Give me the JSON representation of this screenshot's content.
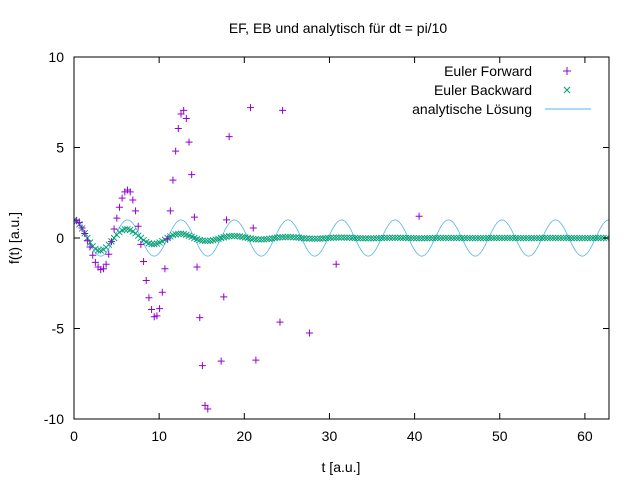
{
  "chart_data": {
    "type": "scatter",
    "title": "EF, EB und analytisch für dt = pi/10",
    "xlabel": "t [a.u.]",
    "ylabel": "f(t) [a.u.]",
    "xlim": [
      0,
      62.83
    ],
    "ylim": [
      -10,
      10
    ],
    "xticks": [
      0,
      10,
      20,
      30,
      40,
      50,
      60
    ],
    "yticks": [
      -10,
      -5,
      0,
      5,
      10
    ],
    "grid": false,
    "legend_position": "top-right",
    "series": [
      {
        "name": "Euler Forward",
        "marker": "plus",
        "color": "#9400d3",
        "x": [
          0.0,
          0.31,
          0.63,
          0.94,
          1.26,
          1.57,
          1.88,
          2.2,
          2.51,
          2.83,
          3.14,
          3.46,
          3.77,
          4.08,
          4.4,
          4.71,
          5.03,
          5.34,
          5.65,
          5.97,
          6.28,
          6.6,
          6.91,
          7.23,
          7.54,
          7.85,
          8.17,
          8.48,
          8.8,
          9.11,
          9.42,
          9.74,
          10.05,
          10.37,
          10.68,
          11.0,
          11.31,
          11.62,
          11.94,
          12.25,
          12.57,
          12.88,
          13.19,
          13.51,
          13.82,
          14.14,
          14.45,
          14.77,
          15.08,
          15.39,
          15.71,
          17.28,
          17.59,
          17.91,
          18.22,
          20.73,
          21.05,
          21.36,
          24.19,
          24.5,
          27.65,
          30.79,
          40.53
        ],
        "y": [
          1.0,
          0.95,
          0.85,
          0.55,
          0.25,
          -0.15,
          -0.5,
          -0.95,
          -1.35,
          -1.6,
          -1.75,
          -1.7,
          -1.45,
          -0.9,
          -0.2,
          0.5,
          1.1,
          1.7,
          2.2,
          2.55,
          2.65,
          2.55,
          2.1,
          1.5,
          0.65,
          -0.35,
          -1.3,
          -2.35,
          -3.3,
          -3.95,
          -4.35,
          -4.3,
          -3.9,
          -3.0,
          -1.7,
          -0.05,
          1.5,
          3.2,
          4.8,
          6.05,
          6.85,
          7.05,
          6.6,
          5.3,
          3.5,
          1.15,
          -1.6,
          -4.4,
          -7.05,
          -9.25,
          -9.45,
          -6.8,
          -3.25,
          1.0,
          5.6,
          7.2,
          0.55,
          -6.75,
          -4.65,
          7.05,
          -5.25,
          -1.45,
          1.2
        ]
      },
      {
        "name": "Euler Backward",
        "marker": "cross",
        "color": "#009e73",
        "model": {
          "amplitude": 1.0,
          "decay": 0.115,
          "omega": 1.0,
          "dt": 0.314159,
          "t_end": 62.83
        }
      },
      {
        "name": "analytische Lösung",
        "marker": "line",
        "color": "#56b4e9",
        "model": {
          "amplitude": 1.0,
          "omega": 1.0,
          "t_end": 62.83
        }
      }
    ]
  }
}
